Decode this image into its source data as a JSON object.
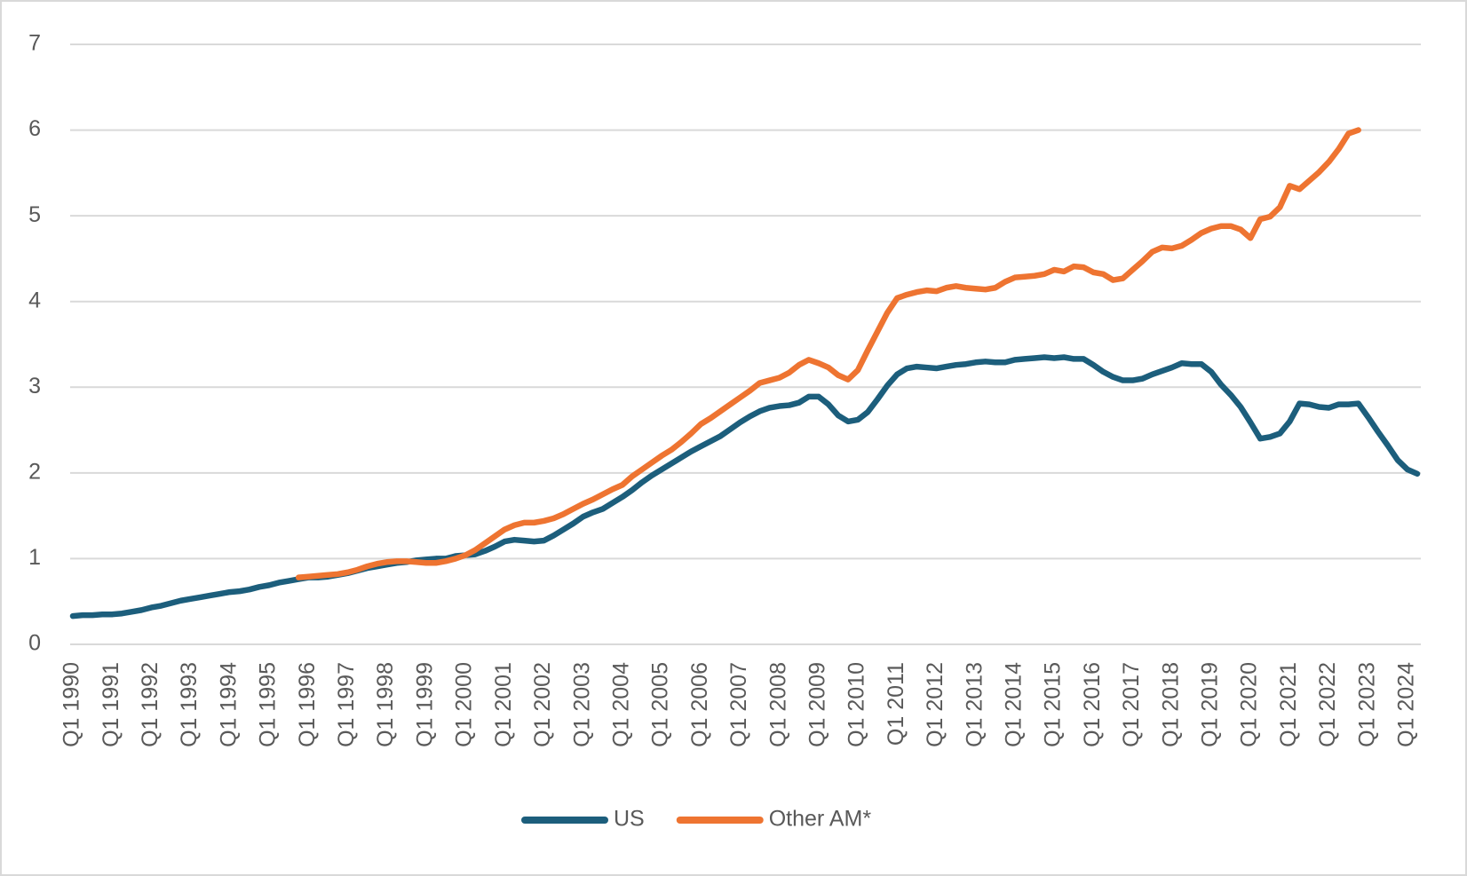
{
  "chart_data": {
    "type": "line",
    "categories": [
      "Q1 1990",
      null,
      null,
      null,
      "Q1 1991",
      null,
      null,
      null,
      "Q1 1992",
      null,
      null,
      null,
      "Q1 1993",
      null,
      null,
      null,
      "Q1 1994",
      null,
      null,
      null,
      "Q1 1995",
      null,
      null,
      null,
      "Q1 1996",
      null,
      null,
      null,
      "Q1 1997",
      null,
      null,
      null,
      "Q1 1998",
      null,
      null,
      null,
      "Q1 1999",
      null,
      null,
      null,
      "Q1 2000",
      null,
      null,
      null,
      "Q1 2001",
      null,
      null,
      null,
      "Q1 2002",
      null,
      null,
      null,
      "Q1 2003",
      null,
      null,
      null,
      "Q1 2004",
      null,
      null,
      null,
      "Q1 2005",
      null,
      null,
      null,
      "Q1 2006",
      null,
      null,
      null,
      "Q1 2007",
      null,
      null,
      null,
      "Q1 2008",
      null,
      null,
      null,
      "Q1 2009",
      null,
      null,
      null,
      "Q1 2010",
      null,
      null,
      null,
      "Q1 2011",
      null,
      null,
      null,
      "Q1 2012",
      null,
      null,
      null,
      "Q1 2013",
      null,
      null,
      null,
      "Q1 2014",
      null,
      null,
      null,
      "Q1 2015",
      null,
      null,
      null,
      "Q1 2016",
      null,
      null,
      null,
      "Q1 2017",
      null,
      null,
      null,
      "Q1 2018",
      null,
      null,
      null,
      "Q1 2019",
      null,
      null,
      null,
      "Q1 2020",
      null,
      null,
      null,
      "Q1 2021",
      null,
      null,
      null,
      "Q1 2022",
      null,
      null,
      null,
      "Q1 2023",
      null,
      null,
      null,
      "Q1 2024",
      null
    ],
    "series": [
      {
        "name": "US",
        "color": "#1c5e7c",
        "values": [
          0.33,
          0.34,
          0.34,
          0.35,
          0.35,
          0.36,
          0.38,
          0.4,
          0.43,
          0.45,
          0.48,
          0.51,
          0.53,
          0.55,
          0.57,
          0.59,
          0.61,
          0.62,
          0.64,
          0.67,
          0.69,
          0.72,
          0.74,
          0.76,
          0.78,
          0.78,
          0.79,
          0.81,
          0.83,
          0.86,
          0.89,
          0.91,
          0.93,
          0.95,
          0.96,
          0.98,
          0.99,
          1.0,
          1.0,
          1.03,
          1.04,
          1.05,
          1.09,
          1.14,
          1.2,
          1.22,
          1.21,
          1.2,
          1.21,
          1.27,
          1.34,
          1.41,
          1.49,
          1.54,
          1.58,
          1.65,
          1.72,
          1.8,
          1.89,
          1.97,
          2.04,
          2.11,
          2.18,
          2.25,
          2.31,
          2.37,
          2.43,
          2.51,
          2.59,
          2.66,
          2.72,
          2.76,
          2.78,
          2.79,
          2.82,
          2.89,
          2.89,
          2.8,
          2.67,
          2.6,
          2.62,
          2.71,
          2.86,
          3.02,
          3.15,
          3.22,
          3.24,
          3.23,
          3.22,
          3.24,
          3.26,
          3.27,
          3.29,
          3.3,
          3.29,
          3.29,
          3.32,
          3.33,
          3.34,
          3.35,
          3.34,
          3.35,
          3.33,
          3.33,
          3.26,
          3.18,
          3.12,
          3.08,
          3.08,
          3.1,
          3.15,
          3.19,
          3.23,
          3.28,
          3.27,
          3.27,
          3.18,
          3.03,
          2.91,
          2.77,
          2.59,
          2.4,
          2.42,
          2.46,
          2.6,
          2.81,
          2.8,
          2.77,
          2.76,
          2.8,
          2.8,
          2.81,
          2.65,
          2.48,
          2.32,
          2.15,
          2.04,
          1.99
        ]
      },
      {
        "name": "Other AM*",
        "color": "#ee7431",
        "values": [
          null,
          null,
          null,
          null,
          null,
          null,
          null,
          null,
          null,
          null,
          null,
          null,
          null,
          null,
          null,
          null,
          null,
          null,
          null,
          null,
          null,
          null,
          null,
          0.78,
          0.79,
          0.8,
          0.81,
          0.82,
          0.84,
          0.87,
          0.91,
          0.94,
          0.96,
          0.97,
          0.97,
          0.96,
          0.95,
          0.95,
          0.97,
          1.0,
          1.04,
          1.1,
          1.18,
          1.26,
          1.34,
          1.39,
          1.42,
          1.42,
          1.44,
          1.47,
          1.52,
          1.58,
          1.64,
          1.69,
          1.75,
          1.81,
          1.86,
          1.96,
          2.04,
          2.12,
          2.2,
          2.27,
          2.36,
          2.46,
          2.57,
          2.64,
          2.72,
          2.8,
          2.88,
          2.96,
          3.05,
          3.08,
          3.11,
          3.17,
          3.26,
          3.32,
          3.28,
          3.23,
          3.14,
          3.09,
          3.2,
          3.43,
          3.65,
          3.87,
          4.04,
          4.08,
          4.11,
          4.13,
          4.12,
          4.16,
          4.18,
          4.16,
          4.15,
          4.14,
          4.16,
          4.23,
          4.28,
          4.29,
          4.3,
          4.32,
          4.37,
          4.35,
          4.41,
          4.4,
          4.34,
          4.32,
          4.25,
          4.27,
          4.37,
          4.47,
          4.58,
          4.63,
          4.62,
          4.65,
          4.72,
          4.8,
          4.85,
          4.88,
          4.88,
          4.84,
          4.74,
          4.96,
          4.99,
          5.1,
          5.35,
          5.31,
          5.41,
          5.51,
          5.63,
          5.78,
          5.96,
          6.0,
          null,
          null,
          null,
          null,
          null,
          null
        ]
      }
    ],
    "ylim": [
      0,
      7
    ],
    "yticks": [
      0,
      1,
      2,
      3,
      4,
      5,
      6,
      7
    ],
    "grid": true,
    "legend": "bottom"
  }
}
